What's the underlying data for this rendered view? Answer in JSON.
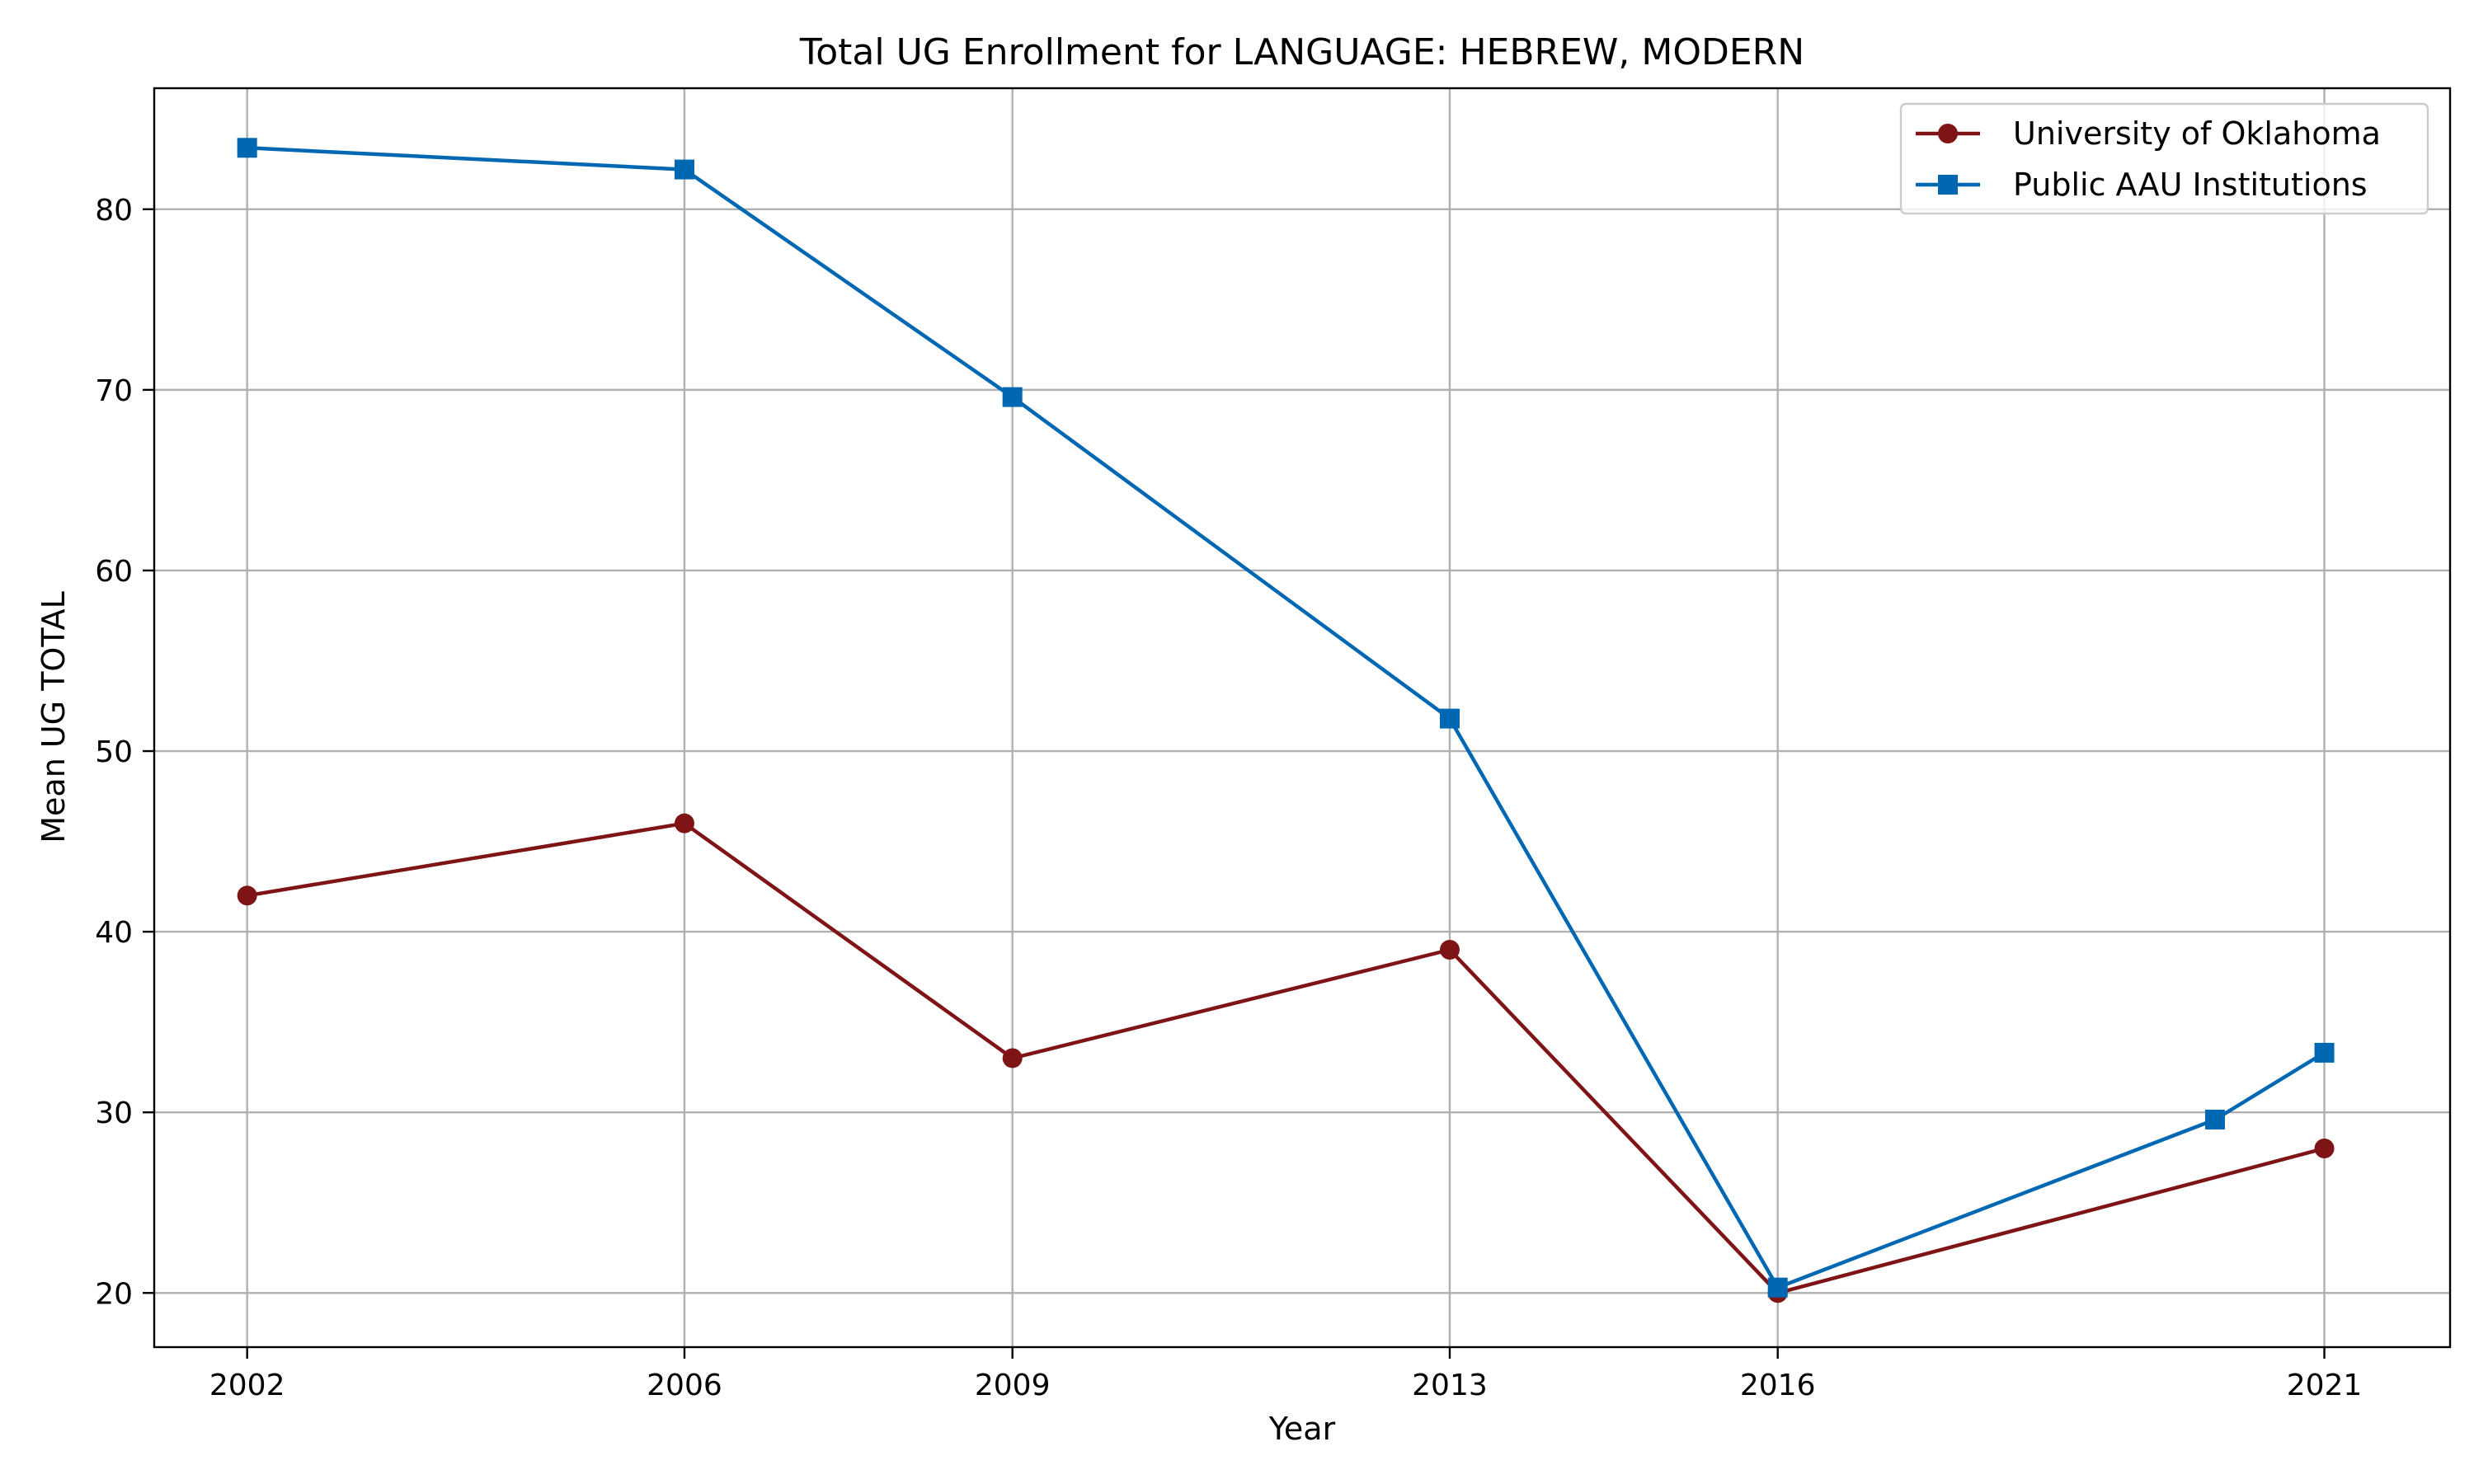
{
  "chart_data": {
    "type": "line",
    "title": "Total UG Enrollment for LANGUAGE: HEBREW, MODERN",
    "xlabel": "Year",
    "ylabel": "Mean UG TOTAL",
    "xlim": [
      2001.15,
      2022.15
    ],
    "ylim": [
      17,
      86.7
    ],
    "x_ticks": [
      2002,
      2006,
      2009,
      2013,
      2016,
      2021
    ],
    "y_ticks": [
      20,
      30,
      40,
      50,
      60,
      70,
      80
    ],
    "grid": true,
    "legend_position": "top-right",
    "series": [
      {
        "name": "University of Oklahoma",
        "color": "#7f1416",
        "marker": "circle",
        "x": [
          2002,
          2006,
          2009,
          2013,
          2016,
          2021
        ],
        "y": [
          42,
          46,
          33,
          39,
          20,
          28
        ]
      },
      {
        "name": "Public AAU Institutions",
        "color": "#0068b2",
        "marker": "square",
        "x": [
          2002,
          2006,
          2009,
          2013,
          2016,
          2020,
          2021
        ],
        "y": [
          83.4,
          82.2,
          69.6,
          51.8,
          20.3,
          29.6,
          33.3
        ]
      }
    ]
  }
}
